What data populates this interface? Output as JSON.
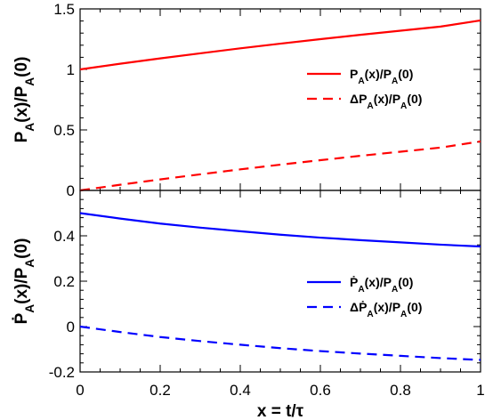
{
  "chart_data": [
    {
      "type": "line",
      "ylabel": {
        "pre": "P",
        "sub1": "A",
        "mid": "(x)/P",
        "sub2": "A",
        "post": "(0)"
      },
      "xlim": [
        0,
        1
      ],
      "ylim": [
        0,
        1.5
      ],
      "yticks": [
        0,
        0.5,
        1,
        1.5
      ],
      "ytick_labels": [
        "0",
        "0.5",
        "1",
        "1.5"
      ],
      "legend_position": "center-right",
      "series": [
        {
          "name": {
            "pre": "P",
            "sub1": "A",
            "mid": "(x)/P",
            "sub2": "A",
            "post": "(0)"
          },
          "color": "#ff0000",
          "style": "solid",
          "x": [
            0,
            0.1,
            0.2,
            0.3,
            0.4,
            0.5,
            0.6,
            0.7,
            0.8,
            0.9,
            1.0
          ],
          "y": [
            1.0,
            1.047,
            1.091,
            1.133,
            1.174,
            1.213,
            1.25,
            1.286,
            1.32,
            1.354,
            1.405
          ]
        },
        {
          "name": {
            "pre": "ΔP",
            "sub1": "A",
            "mid": "(x)/P",
            "sub2": "A",
            "post": "(0)"
          },
          "color": "#ff0000",
          "style": "dashed",
          "x": [
            0,
            0.1,
            0.2,
            0.3,
            0.4,
            0.5,
            0.6,
            0.7,
            0.8,
            0.9,
            1.0
          ],
          "y": [
            0.0,
            0.047,
            0.091,
            0.133,
            0.174,
            0.213,
            0.25,
            0.286,
            0.32,
            0.354,
            0.405
          ]
        }
      ]
    },
    {
      "type": "line",
      "xlabel": "x = t/τ",
      "ylabel": {
        "pre": "Ṗ",
        "sub1": "A",
        "mid": "(x)/P",
        "sub2": "A",
        "post": "(0)"
      },
      "xlim": [
        0,
        1
      ],
      "ylim": [
        -0.2,
        0.6
      ],
      "xticks": [
        0,
        0.2,
        0.4,
        0.6,
        0.8,
        1
      ],
      "xtick_labels": [
        "0",
        "0.2",
        "0.4",
        "0.6",
        "0.8",
        "1"
      ],
      "yticks": [
        -0.2,
        0,
        0.2,
        0.4
      ],
      "ytick_labels": [
        "-0.2",
        "0",
        "0.2",
        "0.4"
      ],
      "legend_position": "bottom-right",
      "series": [
        {
          "name": {
            "pre": "Ṗ",
            "sub1": "A",
            "mid": "(x)/P",
            "sub2": "A",
            "post": "(0)"
          },
          "color": "#0000ff",
          "style": "solid",
          "x": [
            0,
            0.1,
            0.2,
            0.3,
            0.4,
            0.5,
            0.6,
            0.7,
            0.8,
            0.9,
            1.0
          ],
          "y": [
            0.5,
            0.476,
            0.454,
            0.436,
            0.42,
            0.405,
            0.392,
            0.381,
            0.371,
            0.361,
            0.353
          ]
        },
        {
          "name": {
            "pre": "ΔṖ",
            "sub1": "A",
            "mid": "(x)/P",
            "sub2": "A",
            "post": "(0)"
          },
          "color": "#0000ff",
          "style": "dashed",
          "x": [
            0,
            0.1,
            0.2,
            0.3,
            0.4,
            0.5,
            0.6,
            0.7,
            0.8,
            0.9,
            1.0
          ],
          "y": [
            0.0,
            -0.024,
            -0.046,
            -0.064,
            -0.08,
            -0.095,
            -0.108,
            -0.119,
            -0.129,
            -0.139,
            -0.147
          ]
        }
      ]
    }
  ]
}
